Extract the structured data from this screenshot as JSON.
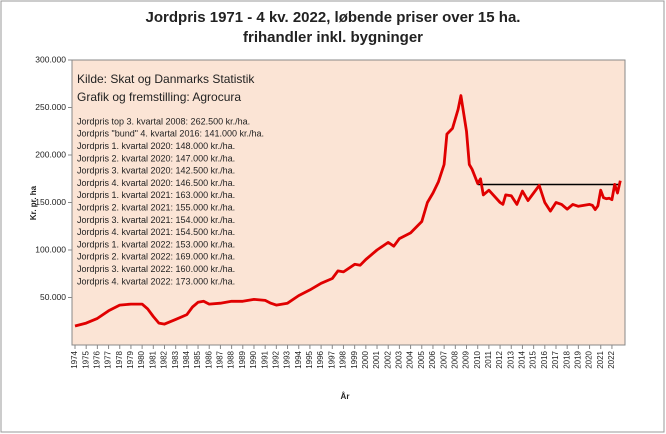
{
  "chart_data": {
    "type": "line",
    "title": [
      "Jordpris 1971 - 4 kv. 2022, løbende priser over 15 ha.",
      "frihandler inkl. bygninger"
    ],
    "ylabel": "Kr. pr. ha",
    "xlabel": "År",
    "annotations": {
      "source": [
        "Kilde: Skat og Danmarks Statistik",
        "Grafik og fremstilling: Agrocura"
      ],
      "notes": [
        "Jordpris top 3. kvartal 2008: 262.500 kr./ha.",
        "Jordpris \"bund\" 4. kvartal 2016: 141.000 kr./ha.",
        "Jordpris 1. kvartal 2020: 148.000 kr./ha.",
        "Jordpris 2. kvartal 2020: 147.000 kr./ha.",
        "Jordpris 3. kvartal 2020: 142.500 kr./ha.",
        "Jordpris 4. kvartal 2020: 146.500 kr./ha.",
        "Jordpris 1. kvartal 2021: 163.000 kr./ha.",
        "Jordpris 2. kvartal 2021: 155.000 kr./ha.",
        "Jordpris 3. kvartal 2021: 154.000 kr./ha.",
        "Jordpris 4. kvartal 2021: 154.500 kr./ha.",
        "Jordpris 1. kvartal 2022: 153.000 kr./ha.",
        "Jordpris 2. kvartal 2022: 169.000 kr./ha.",
        "Jordpris 3. kvartal 2022: 160.000 kr./ha.",
        "Jordpris 4. kvartal 2022: 173.000 kr./ha."
      ]
    },
    "color": "#e00000",
    "plot_background": "#fbe4d5",
    "x": [
      1974,
      1975,
      1976,
      1977,
      1978,
      1979,
      1980,
      1980.5,
      1981,
      1981.5,
      1982,
      1983,
      1984,
      1984.5,
      1985,
      1985.5,
      1986,
      1987,
      1988,
      1989,
      1990,
      1991,
      1991.5,
      1992,
      1993,
      1994,
      1995,
      1996,
      1997,
      1997.5,
      1998,
      1999,
      1999.5,
      2000,
      2001,
      2002,
      2002.5,
      2003,
      2004,
      2005,
      2005.5,
      2006,
      2006.5,
      2007,
      2007.25,
      2007.75,
      2008.25,
      2008.5,
      2009,
      2009.25,
      2009.5,
      2010,
      2010.25,
      2010.5,
      2011,
      2012,
      2012.25,
      2012.5,
      2013,
      2013.5,
      2014,
      2014.5,
      2015,
      2015.5,
      2016,
      2016.5,
      2017,
      2017.5,
      2018,
      2018.5,
      2019,
      2020,
      2020.25,
      2020.5,
      2020.75,
      2021,
      2021.25,
      2021.5,
      2021.75,
      2022,
      2022.25,
      2022.5,
      2022.75
    ],
    "values": [
      20000,
      23000,
      28000,
      36000,
      42000,
      43000,
      43000,
      38000,
      30000,
      23000,
      22000,
      27000,
      32000,
      40000,
      45000,
      46000,
      43000,
      44000,
      46000,
      46000,
      48000,
      47000,
      44000,
      42000,
      44000,
      52000,
      58000,
      65000,
      70000,
      78000,
      77000,
      85000,
      84000,
      90000,
      100000,
      108000,
      104000,
      112000,
      118000,
      130000,
      150000,
      160000,
      172000,
      190000,
      222000,
      228000,
      248000,
      262500,
      225000,
      190000,
      185000,
      170000,
      175000,
      158000,
      163000,
      150000,
      148000,
      158000,
      157000,
      148000,
      162000,
      152000,
      160000,
      168000,
      150000,
      141000,
      150000,
      148000,
      143000,
      148000,
      146000,
      148000,
      147000,
      142500,
      146500,
      163000,
      155000,
      154000,
      154500,
      153000,
      169000,
      160000,
      173000
    ],
    "reference_line": {
      "value": 169000,
      "x": [
        2010,
        2022.75
      ],
      "color": "#000000"
    },
    "xlim": [
      1974,
      2022.9
    ],
    "xticks": [
      1974,
      1975,
      1976,
      1977,
      1978,
      1979,
      1980,
      1981,
      1982,
      1983,
      1984,
      1985,
      1986,
      1987,
      1988,
      1989,
      1990,
      1991,
      1992,
      1993,
      1994,
      1995,
      1996,
      1997,
      1998,
      1999,
      2000,
      2001,
      2002,
      2003,
      2004,
      2005,
      2006,
      2007,
      2008,
      2009,
      2010,
      2011,
      2012,
      2013,
      2014,
      2015,
      2016,
      2017,
      2018,
      2019,
      2020,
      2021,
      2022
    ],
    "ylim": [
      0,
      300000
    ],
    "yticks": [
      {
        "value": 50000,
        "label": "50.000"
      },
      {
        "value": 100000,
        "label": "100.000"
      },
      {
        "value": 150000,
        "label": "150.000"
      },
      {
        "value": 200000,
        "label": "200.000"
      },
      {
        "value": 250000,
        "label": "250.000"
      },
      {
        "value": 300000,
        "label": "300.000"
      }
    ]
  }
}
